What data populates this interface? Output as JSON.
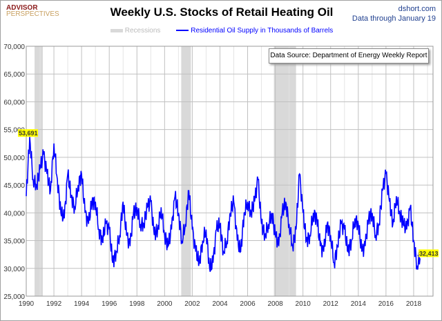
{
  "header": {
    "logo_line1": "ADVISOR",
    "logo_line2": "PERSPECTIVES",
    "site": "dshort.com",
    "data_through": "Data through January 19"
  },
  "source_box": "Data Source: Department of Energy Weekly Report",
  "colors": {
    "line": "#0000ff",
    "recession": "#d9d9d9",
    "label_bg": "#ffff00"
  },
  "chart_data": {
    "type": "line",
    "title": "Weekly U.S. Stocks of Retail Heating Oil",
    "legend": [
      "Recessions",
      "Residential Oil Supply in Thousands of Barrels"
    ],
    "legend_placement": "top",
    "xlim": [
      1990,
      2019.4
    ],
    "ylim": [
      25000,
      70000
    ],
    "yticks": [
      25000,
      30000,
      35000,
      40000,
      45000,
      50000,
      55000,
      60000,
      65000,
      70000
    ],
    "ytick_labels": [
      "25,000",
      "30,000",
      "35,000",
      "40,000",
      "45,000",
      "50,000",
      "55,000",
      "60,000",
      "65,000",
      "70,000"
    ],
    "xticks": [
      1990,
      1992,
      1994,
      1996,
      1998,
      2000,
      2002,
      2004,
      2006,
      2008,
      2010,
      2012,
      2014,
      2016,
      2018
    ],
    "grid": true,
    "recessions": [
      [
        1990.6,
        1991.2
      ],
      [
        2001.2,
        2001.9
      ],
      [
        2007.9,
        2009.5
      ]
    ],
    "series": [
      {
        "name": "Residential Oil Supply in Thousands of Barrels",
        "start": 1990,
        "step": 0.25,
        "values": [
          43000,
          53691,
          46000,
          45000,
          48000,
          50500,
          47000,
          44000,
          52500,
          46000,
          40000,
          39000,
          47000,
          43000,
          41000,
          45000,
          47000,
          40000,
          38000,
          42000,
          42000,
          37000,
          35000,
          38000,
          37000,
          31000,
          33000,
          36000,
          42000,
          36000,
          34000,
          40000,
          41000,
          38000,
          38000,
          41000,
          42000,
          36000,
          37000,
          41000,
          36000,
          34000,
          37000,
          43000,
          40000,
          35000,
          38000,
          44000,
          37000,
          33000,
          31000,
          35000,
          37000,
          30000,
          31000,
          37000,
          38000,
          33000,
          35000,
          40000,
          42000,
          35000,
          33000,
          40000,
          42000,
          40000,
          42000,
          46000,
          38000,
          36000,
          38000,
          40000,
          36000,
          34000,
          40000,
          42000,
          38000,
          34000,
          37000,
          47000,
          40000,
          35000,
          36000,
          40000,
          39000,
          34000,
          33000,
          38000,
          36000,
          31000,
          34000,
          38000,
          37000,
          33000,
          35000,
          39000,
          38000,
          33000,
          34000,
          39000,
          40000,
          36000,
          38000,
          44000,
          47000,
          42000,
          38000,
          43000,
          40000,
          38000,
          37000,
          41000,
          35000,
          30500,
          32413
        ]
      }
    ],
    "annotations": [
      {
        "text": "53,691",
        "x": 1990.25,
        "y": 53691
      },
      {
        "text": "32,413",
        "x": 2018.05,
        "y": 32413
      }
    ]
  }
}
